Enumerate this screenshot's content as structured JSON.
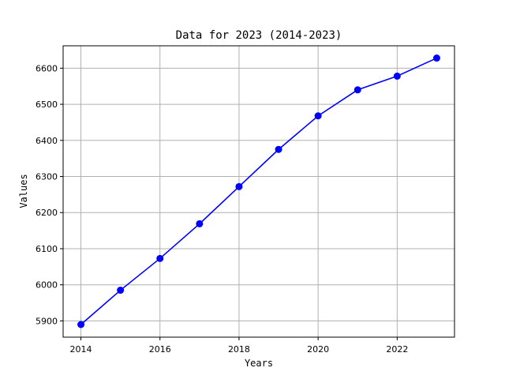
{
  "chart_data": {
    "type": "line",
    "title": "Data for 2023 (2014-2023)",
    "xlabel": "Years",
    "ylabel": "Values",
    "x": [
      2014,
      2015,
      2016,
      2017,
      2018,
      2019,
      2020,
      2021,
      2022,
      2023
    ],
    "series": [
      {
        "values": [
          5890,
          5985,
          6073,
          6169,
          6272,
          6375,
          6468,
          6540,
          6578,
          6628
        ],
        "color": "#0000ff",
        "marker": "circle"
      }
    ],
    "xlim": [
      2013.55,
      2023.45
    ],
    "ylim": [
      5855,
      6662
    ],
    "xticks": [
      2014,
      2016,
      2018,
      2020,
      2022
    ],
    "yticks": [
      5900,
      6000,
      6100,
      6200,
      6300,
      6400,
      6500,
      6600
    ],
    "xtick_labels": [
      "2014",
      "2016",
      "2018",
      "2020",
      "2022"
    ],
    "ytick_labels": [
      "5900",
      "6000",
      "6100",
      "6200",
      "6300",
      "6400",
      "6500",
      "6600"
    ],
    "grid": true,
    "legend": false
  }
}
